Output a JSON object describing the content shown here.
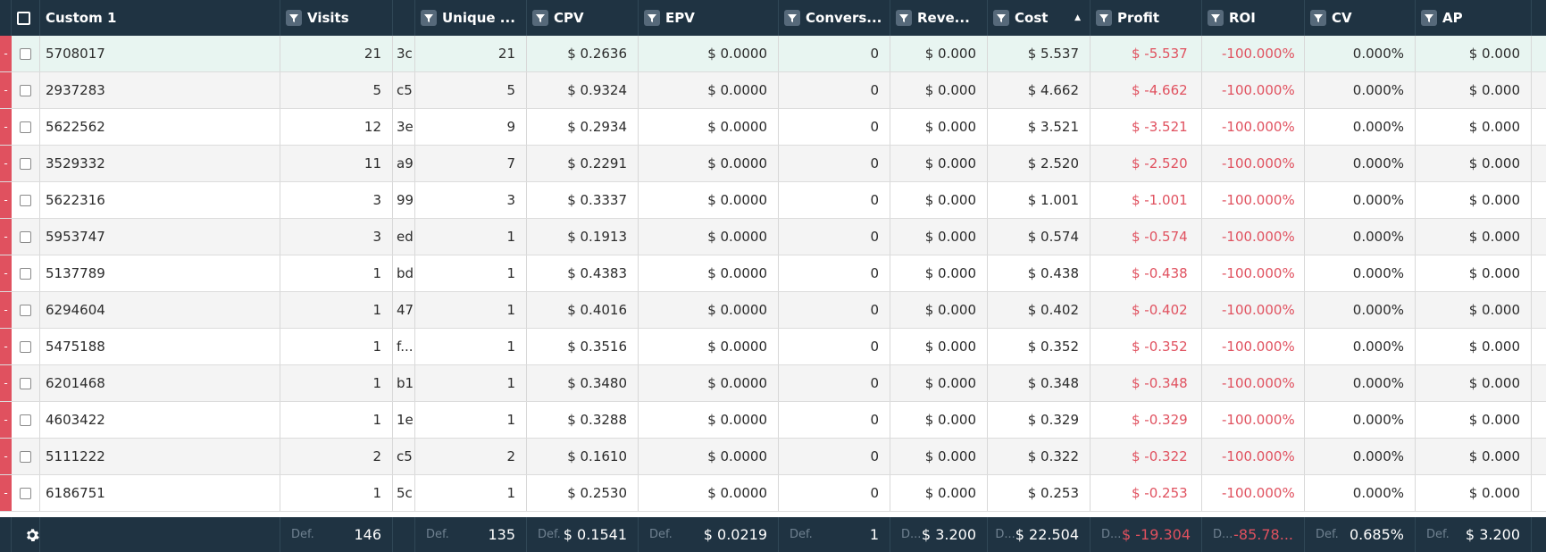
{
  "accent_color": "#e0515f",
  "header_bg": "#1f3342",
  "columns": [
    {
      "label": "Custom 1",
      "filter": false
    },
    {
      "label": "Visits",
      "filter": true
    },
    {
      "label": "",
      "filter": false
    },
    {
      "label": "Unique ...",
      "filter": true
    },
    {
      "label": "CPV",
      "filter": true
    },
    {
      "label": "EPV",
      "filter": true
    },
    {
      "label": "Convers...",
      "filter": true
    },
    {
      "label": "Reve...",
      "filter": true
    },
    {
      "label": "Cost",
      "filter": true,
      "sorted": "asc"
    },
    {
      "label": "Profit",
      "filter": true
    },
    {
      "label": "ROI",
      "filter": true
    },
    {
      "label": "CV",
      "filter": true
    },
    {
      "label": "AP",
      "filter": true
    }
  ],
  "rows": [
    {
      "custom1": "5708017",
      "visits": "21",
      "frag": "3c",
      "unique": "21",
      "cpv": "$ 0.2636",
      "epv": "$ 0.0000",
      "conv": "0",
      "rev": "$ 0.000",
      "cost": "$ 5.537",
      "profit": "$ -5.537",
      "roi": "-100.000%",
      "cv": "0.000%",
      "ap": "$ 0.000"
    },
    {
      "custom1": "2937283",
      "visits": "5",
      "frag": "c5",
      "unique": "5",
      "cpv": "$ 0.9324",
      "epv": "$ 0.0000",
      "conv": "0",
      "rev": "$ 0.000",
      "cost": "$ 4.662",
      "profit": "$ -4.662",
      "roi": "-100.000%",
      "cv": "0.000%",
      "ap": "$ 0.000"
    },
    {
      "custom1": "5622562",
      "visits": "12",
      "frag": "3e",
      "unique": "9",
      "cpv": "$ 0.2934",
      "epv": "$ 0.0000",
      "conv": "0",
      "rev": "$ 0.000",
      "cost": "$ 3.521",
      "profit": "$ -3.521",
      "roi": "-100.000%",
      "cv": "0.000%",
      "ap": "$ 0.000"
    },
    {
      "custom1": "3529332",
      "visits": "11",
      "frag": "a9",
      "unique": "7",
      "cpv": "$ 0.2291",
      "epv": "$ 0.0000",
      "conv": "0",
      "rev": "$ 0.000",
      "cost": "$ 2.520",
      "profit": "$ -2.520",
      "roi": "-100.000%",
      "cv": "0.000%",
      "ap": "$ 0.000"
    },
    {
      "custom1": "5622316",
      "visits": "3",
      "frag": "99",
      "unique": "3",
      "cpv": "$ 0.3337",
      "epv": "$ 0.0000",
      "conv": "0",
      "rev": "$ 0.000",
      "cost": "$ 1.001",
      "profit": "$ -1.001",
      "roi": "-100.000%",
      "cv": "0.000%",
      "ap": "$ 0.000"
    },
    {
      "custom1": "5953747",
      "visits": "3",
      "frag": "ed",
      "unique": "1",
      "cpv": "$ 0.1913",
      "epv": "$ 0.0000",
      "conv": "0",
      "rev": "$ 0.000",
      "cost": "$ 0.574",
      "profit": "$ -0.574",
      "roi": "-100.000%",
      "cv": "0.000%",
      "ap": "$ 0.000"
    },
    {
      "custom1": "5137789",
      "visits": "1",
      "frag": "bd",
      "unique": "1",
      "cpv": "$ 0.4383",
      "epv": "$ 0.0000",
      "conv": "0",
      "rev": "$ 0.000",
      "cost": "$ 0.438",
      "profit": "$ -0.438",
      "roi": "-100.000%",
      "cv": "0.000%",
      "ap": "$ 0.000"
    },
    {
      "custom1": "6294604",
      "visits": "1",
      "frag": "47",
      "unique": "1",
      "cpv": "$ 0.4016",
      "epv": "$ 0.0000",
      "conv": "0",
      "rev": "$ 0.000",
      "cost": "$ 0.402",
      "profit": "$ -0.402",
      "roi": "-100.000%",
      "cv": "0.000%",
      "ap": "$ 0.000"
    },
    {
      "custom1": "5475188",
      "visits": "1",
      "frag": "f...",
      "unique": "1",
      "cpv": "$ 0.3516",
      "epv": "$ 0.0000",
      "conv": "0",
      "rev": "$ 0.000",
      "cost": "$ 0.352",
      "profit": "$ -0.352",
      "roi": "-100.000%",
      "cv": "0.000%",
      "ap": "$ 0.000"
    },
    {
      "custom1": "6201468",
      "visits": "1",
      "frag": "b1",
      "unique": "1",
      "cpv": "$ 0.3480",
      "epv": "$ 0.0000",
      "conv": "0",
      "rev": "$ 0.000",
      "cost": "$ 0.348",
      "profit": "$ -0.348",
      "roi": "-100.000%",
      "cv": "0.000%",
      "ap": "$ 0.000"
    },
    {
      "custom1": "4603422",
      "visits": "1",
      "frag": "1e",
      "unique": "1",
      "cpv": "$ 0.3288",
      "epv": "$ 0.0000",
      "conv": "0",
      "rev": "$ 0.000",
      "cost": "$ 0.329",
      "profit": "$ -0.329",
      "roi": "-100.000%",
      "cv": "0.000%",
      "ap": "$ 0.000"
    },
    {
      "custom1": "5111222",
      "visits": "2",
      "frag": "c5",
      "unique": "2",
      "cpv": "$ 0.1610",
      "epv": "$ 0.0000",
      "conv": "0",
      "rev": "$ 0.000",
      "cost": "$ 0.322",
      "profit": "$ -0.322",
      "roi": "-100.000%",
      "cv": "0.000%",
      "ap": "$ 0.000"
    },
    {
      "custom1": "6186751",
      "visits": "1",
      "frag": "5c",
      "unique": "1",
      "cpv": "$ 0.2530",
      "epv": "$ 0.0000",
      "conv": "0",
      "rev": "$ 0.000",
      "cost": "$ 0.253",
      "profit": "$ -0.253",
      "roi": "-100.000%",
      "cv": "0.000%",
      "ap": "$ 0.000"
    }
  ],
  "footer": {
    "settings_icon": "gear-icon",
    "cells": [
      {
        "col": "visits",
        "def": "Def.",
        "value": "146"
      },
      {
        "col": "frag",
        "def": "",
        "value": ""
      },
      {
        "col": "unique",
        "def": "Def.",
        "value": "135"
      },
      {
        "col": "cpv",
        "def": "Def.",
        "value": "$ 0.1541"
      },
      {
        "col": "epv",
        "def": "Def.",
        "value": "$ 0.0219"
      },
      {
        "col": "conv",
        "def": "Def.",
        "value": "1"
      },
      {
        "col": "rev",
        "def": "D...",
        "value": "$ 3.200"
      },
      {
        "col": "cost",
        "def": "D...",
        "value": "$ 22.504"
      },
      {
        "col": "profit",
        "def": "D...",
        "value": "$ -19.304",
        "neg": true
      },
      {
        "col": "roi",
        "def": "D...",
        "value": "-85.78...",
        "neg": true
      },
      {
        "col": "cv",
        "def": "Def.",
        "value": "0.685%"
      },
      {
        "col": "ap",
        "def": "Def.",
        "value": "$ 3.200"
      }
    ]
  }
}
